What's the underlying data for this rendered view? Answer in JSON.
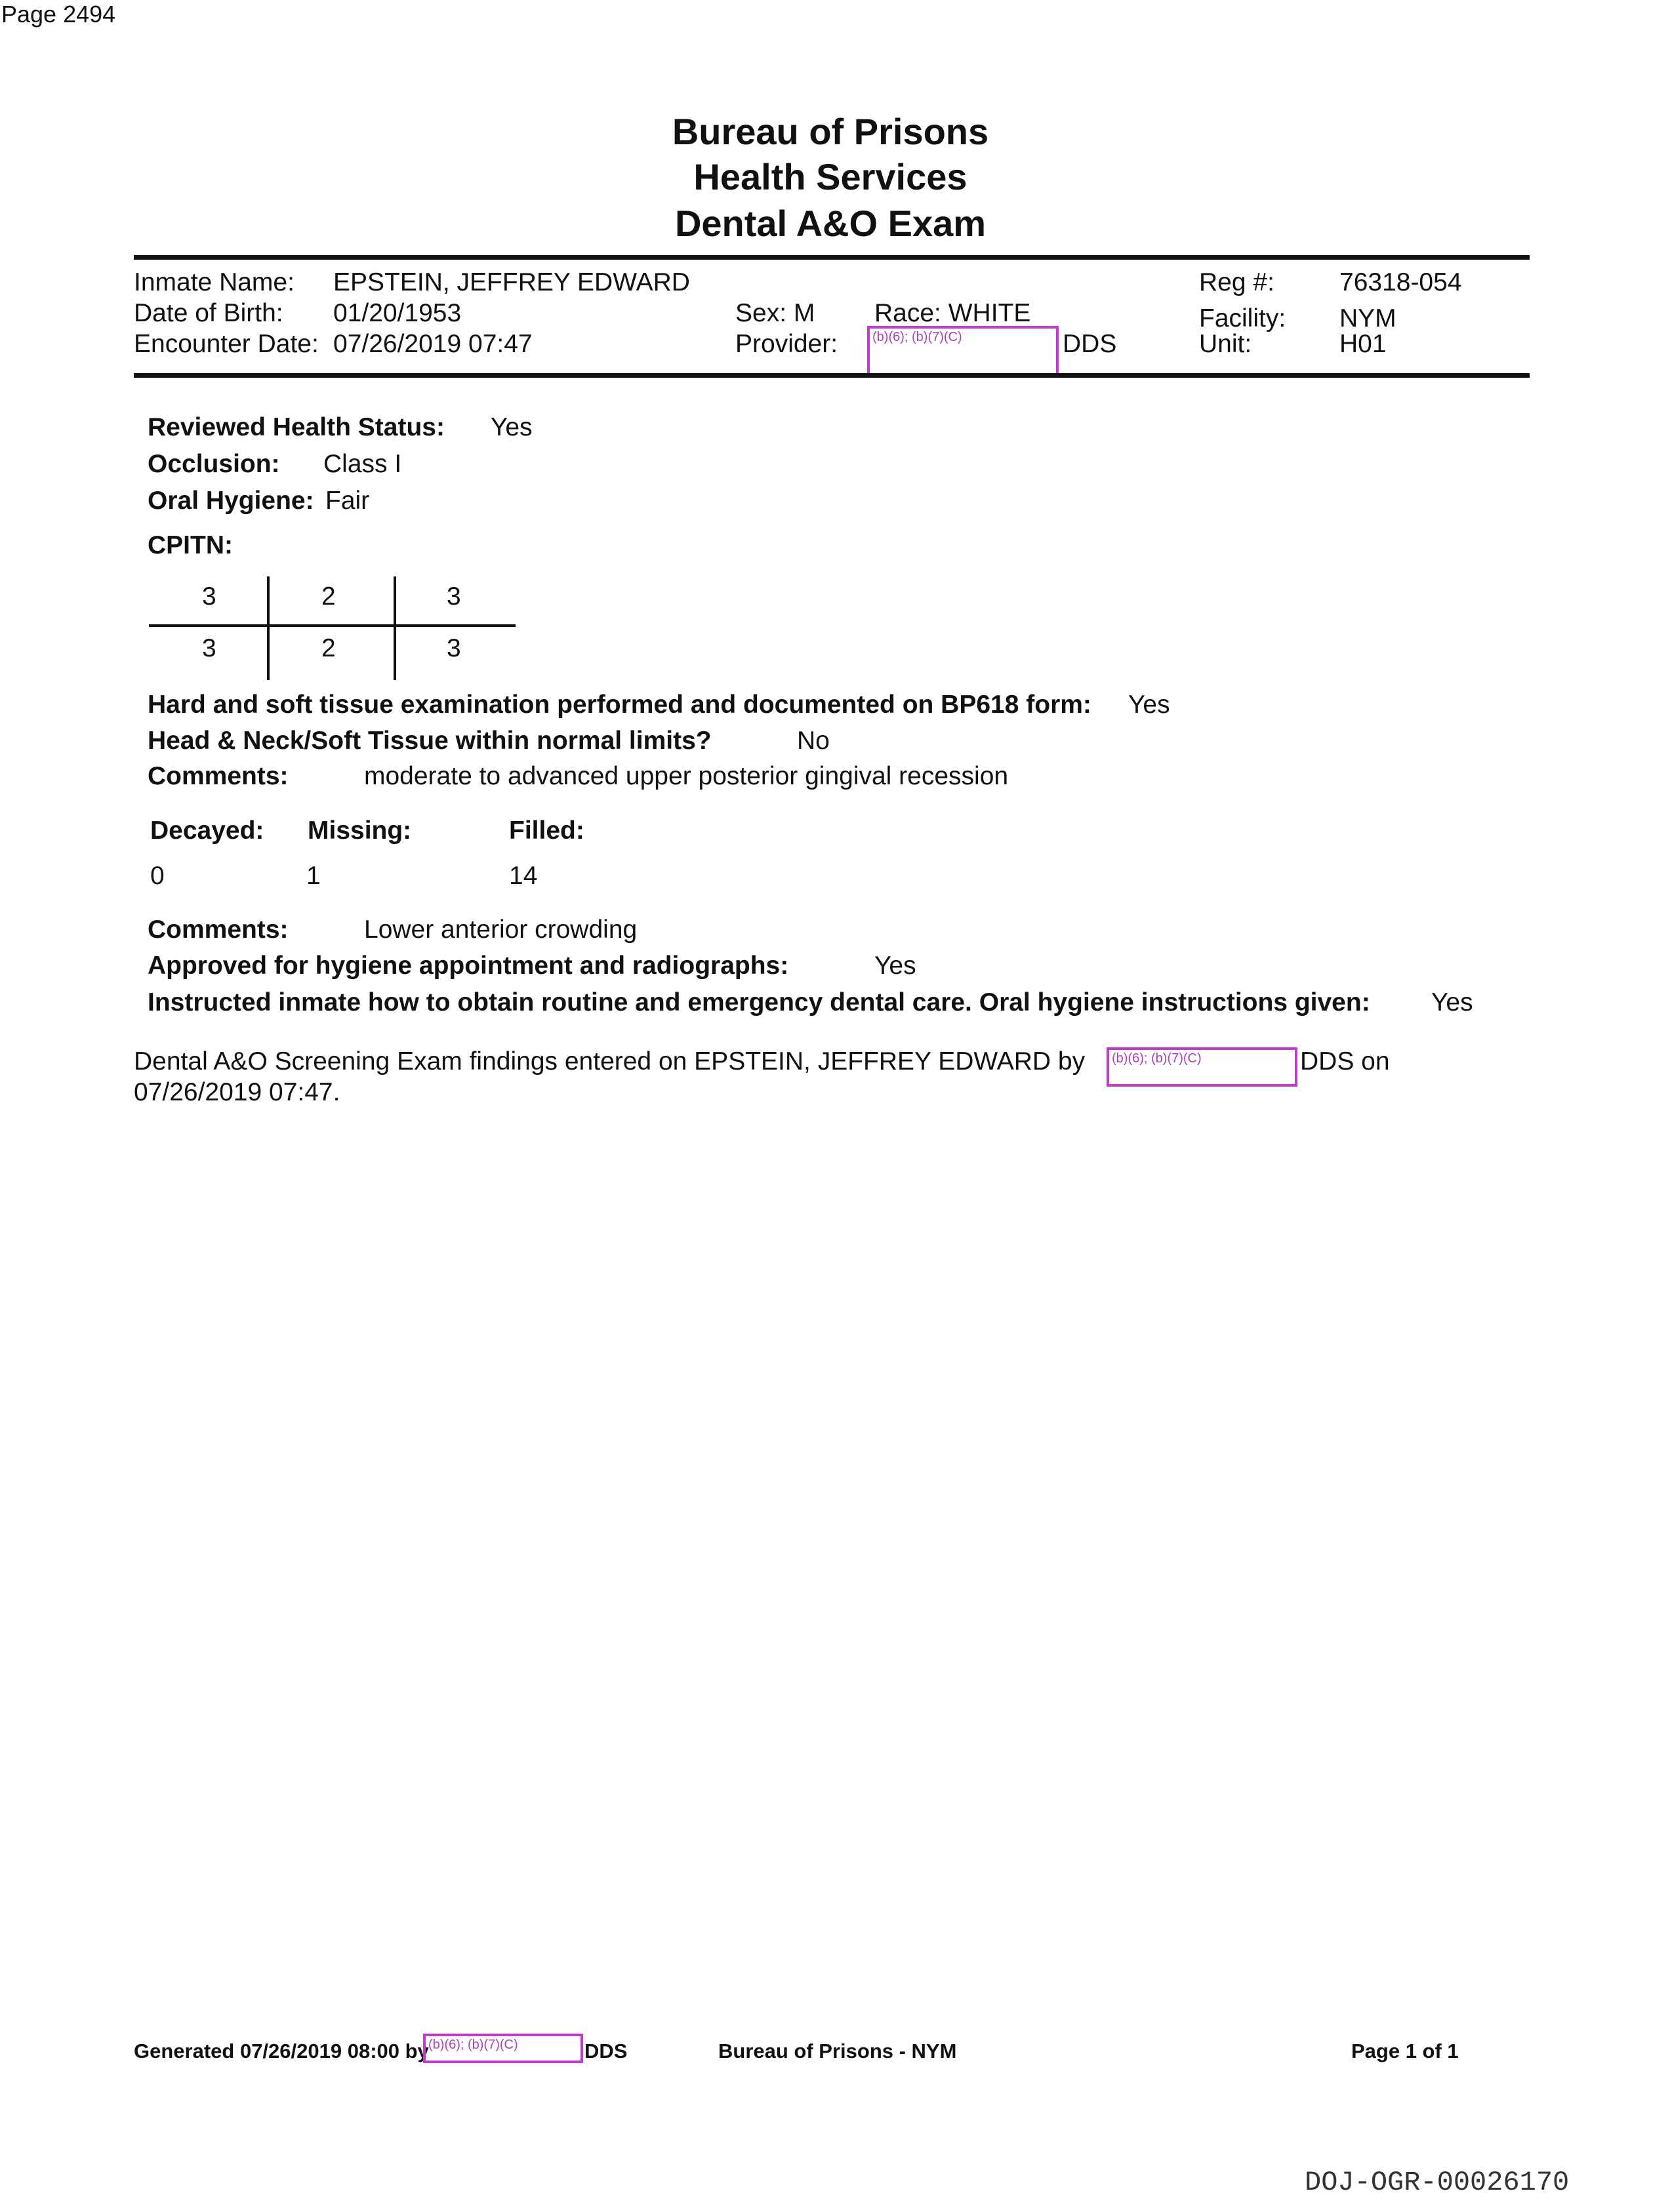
{
  "page_label": "Page 2494",
  "title": [
    "Bureau of Prisons",
    "Health Services",
    "Dental A&O Exam"
  ],
  "header": {
    "inmate_name_label": "Inmate Name:",
    "inmate_name": "EPSTEIN, JEFFREY EDWARD",
    "dob_label": "Date of Birth:",
    "dob": "01/20/1953",
    "encounter_label": "Encounter Date:",
    "encounter": "07/26/2019 07:47",
    "sex": "Sex: M",
    "race": "Race:  WHITE",
    "provider_label": "Provider:",
    "provider_redaction": "(b)(6); (b)(7)(C)",
    "provider_suffix": "DDS",
    "reg_label": "Reg #:",
    "reg": "76318-054",
    "facility_label": "Facility:",
    "facility": "NYM",
    "unit_label": "Unit:",
    "unit": "H01"
  },
  "exam": {
    "health_status_label": "Reviewed Health Status:",
    "health_status": "Yes",
    "occlusion_label": "Occlusion:",
    "occlusion": "Class I",
    "hygiene_label": "Oral Hygiene:",
    "hygiene": "Fair",
    "cpitn_label": "CPITN:",
    "cpitn": [
      [
        "3",
        "2",
        "3"
      ],
      [
        "3",
        "2",
        "3"
      ]
    ],
    "tissue_label": "Hard and soft tissue examination performed and documented on BP618 form:",
    "tissue": "Yes",
    "head_neck_label": "Head & Neck/Soft Tissue within normal limits?",
    "head_neck": "No",
    "comments1_label": "Comments:",
    "comments1": "moderate to advanced upper posterior gingival recession",
    "decayed_label": "Decayed:",
    "missing_label": "Missing:",
    "filled_label": "Filled:",
    "decayed": "0",
    "missing": "1",
    "filled": "14",
    "comments2_label": "Comments:",
    "comments2": "Lower anterior crowding",
    "approved_label": "Approved for hygiene appointment and radiographs:",
    "approved": "Yes",
    "instructed_label": "Instructed inmate how to obtain routine and emergency dental care.  Oral hygiene instructions given:",
    "instructed": "Yes"
  },
  "entry": {
    "line1_prefix": "Dental A&O Screening Exam findings entered on EPSTEIN, JEFFREY EDWARD by",
    "redaction": "(b)(6); (b)(7)(C)",
    "line1_suffix": "DDS on",
    "line2": "07/26/2019 07:47."
  },
  "footer": {
    "generated": "Generated 07/26/2019 08:00 by",
    "redaction": "(b)(6); (b)(7)(C)",
    "suffix": "DDS",
    "org": "Bureau of Prisons - NYM",
    "page": "Page 1 of 1"
  },
  "doc_id": "DOJ-OGR-00026170",
  "colors": {
    "redaction_border": "#c23bd0"
  }
}
